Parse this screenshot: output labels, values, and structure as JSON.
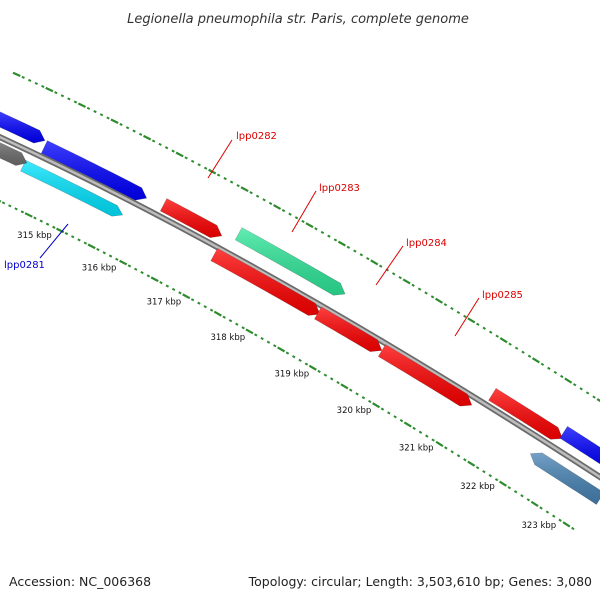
{
  "title": "Legionella pneumophila str. Paris, complete genome",
  "footer": {
    "accession": "Accession: NC_006368",
    "summary": "Topology: circular; Length: 3,503,610 bp; Genes: 3,080"
  },
  "colors": {
    "backbone": "#8c8c8c",
    "ticks": "#2e8b2e",
    "red_gene": "#ff0000",
    "blue_gene": "#0000ff",
    "green_gene": "#2ee89a",
    "cyan_gene": "#00e5ff",
    "steel_gene": "#4682b4",
    "gray_gene": "#6e6e6e",
    "label_red": "#dd0000",
    "label_blue": "#0000cc"
  },
  "tick_labels": [
    "315 kbp",
    "316 kbp",
    "317 kbp",
    "318 kbp",
    "319 kbp",
    "320 kbp",
    "321 kbp",
    "322 kbp",
    "323 kbp"
  ],
  "gene_labels": [
    {
      "name": "lpp0281",
      "color": "blue"
    },
    {
      "name": "lpp0282",
      "color": "red"
    },
    {
      "name": "lpp0283",
      "color": "red"
    },
    {
      "name": "lpp0284",
      "color": "red"
    },
    {
      "name": "lpp0285",
      "color": "red"
    }
  ]
}
